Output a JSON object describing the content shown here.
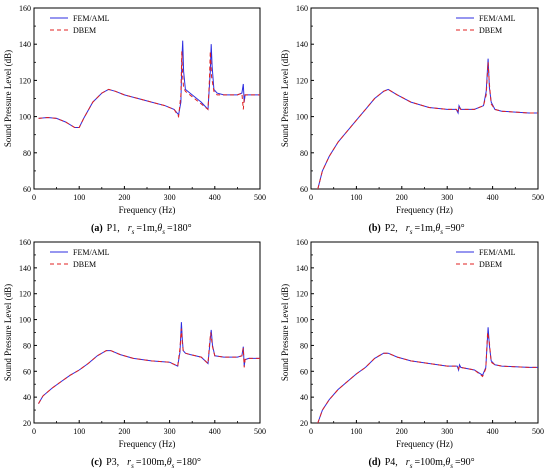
{
  "figure": {
    "legend": {
      "primary": "FEM/AML",
      "secondary": "DBEM"
    },
    "colors": {
      "primary": "#2e2ee0",
      "secondary": "#e02020"
    }
  },
  "chart_data": [
    {
      "type": "line",
      "panel": "a",
      "caption": {
        "prefix": "(a)",
        "point": "P1,",
        "rs": "1m",
        "theta": "180°"
      },
      "xlabel": "Frequency (Hz)",
      "ylabel": "Sound Pressure Level (dB)",
      "xlim": [
        0,
        500
      ],
      "ylim": [
        60,
        160
      ],
      "xticks": [
        0,
        100,
        200,
        300,
        400,
        500
      ],
      "yticks": [
        60,
        80,
        100,
        120,
        140,
        160
      ],
      "grid": false,
      "legend_position": "top-left",
      "series": [
        {
          "name": "FEM/AML",
          "style": "solid",
          "x": [
            10,
            30,
            50,
            70,
            90,
            100,
            110,
            130,
            150,
            165,
            180,
            200,
            230,
            260,
            290,
            310,
            320,
            325,
            327,
            329,
            331,
            335,
            340,
            350,
            370,
            385,
            390,
            392,
            394,
            398,
            405,
            420,
            450,
            460,
            463,
            465,
            467,
            470,
            480,
            500
          ],
          "y": [
            99,
            99.5,
            99,
            97,
            94,
            94,
            99,
            108,
            113,
            115,
            114,
            112,
            110,
            108,
            106,
            104,
            101,
            108,
            130,
            142,
            125,
            115,
            114,
            112,
            108,
            104,
            125,
            140,
            128,
            115,
            113,
            112,
            112,
            113,
            118,
            108,
            112,
            112,
            112,
            112
          ]
        },
        {
          "name": "DBEM",
          "style": "dashed",
          "x": [
            10,
            30,
            50,
            70,
            90,
            100,
            110,
            130,
            150,
            165,
            180,
            200,
            230,
            260,
            290,
            310,
            320,
            325,
            327,
            329,
            331,
            335,
            340,
            350,
            370,
            385,
            388,
            390,
            393,
            398,
            405,
            420,
            450,
            460,
            463,
            465,
            467,
            470,
            480,
            500
          ],
          "y": [
            99,
            99.5,
            99,
            97,
            94,
            94,
            99,
            108,
            113,
            115,
            114,
            112,
            110,
            108,
            106,
            104,
            100,
            112,
            136,
            122,
            116,
            114,
            113,
            111,
            107,
            104,
            120,
            136,
            122,
            114,
            112,
            112,
            112,
            113,
            104,
            110,
            112,
            112,
            112,
            112
          ]
        }
      ]
    },
    {
      "type": "line",
      "panel": "b",
      "caption": {
        "prefix": "(b)",
        "point": "P2,",
        "rs": "1m",
        "theta": "90°"
      },
      "xlabel": "Frequency (Hz)",
      "ylabel": "Sound Pressure Level (dB)",
      "xlim": [
        0,
        500
      ],
      "ylim": [
        60,
        160
      ],
      "xticks": [
        0,
        100,
        200,
        300,
        400,
        500
      ],
      "yticks": [
        60,
        80,
        100,
        120,
        140,
        160
      ],
      "grid": false,
      "legend_position": "top-right",
      "series": [
        {
          "name": "FEM/AML",
          "style": "solid",
          "x": [
            15,
            25,
            40,
            60,
            80,
            100,
            120,
            140,
            160,
            170,
            190,
            220,
            260,
            300,
            320,
            324,
            326,
            330,
            360,
            380,
            386,
            390,
            393,
            397,
            405,
            420,
            450,
            480,
            500
          ],
          "y": [
            60,
            70,
            78,
            86,
            92,
            98,
            104,
            110,
            114,
            115,
            112,
            108,
            105,
            104,
            104,
            102,
            106,
            104,
            104,
            106,
            114,
            132,
            116,
            108,
            104,
            103,
            102.5,
            102,
            102
          ]
        },
        {
          "name": "DBEM",
          "style": "dashed",
          "x": [
            15,
            25,
            40,
            60,
            80,
            100,
            120,
            140,
            160,
            170,
            190,
            220,
            260,
            300,
            320,
            324,
            326,
            330,
            360,
            380,
            386,
            390,
            393,
            397,
            405,
            420,
            450,
            480,
            500
          ],
          "y": [
            60,
            70,
            78,
            86,
            92,
            98,
            104,
            110,
            114,
            115,
            112,
            108,
            105,
            104,
            104,
            103,
            105,
            104,
            104,
            106,
            112,
            130,
            118,
            107,
            104,
            103,
            102.5,
            102,
            102
          ]
        }
      ]
    },
    {
      "type": "line",
      "panel": "c",
      "caption": {
        "prefix": "(c)",
        "point": "P3,",
        "rs": "100m",
        "theta": "180°"
      },
      "xlabel": "Frequency (Hz)",
      "ylabel": "Sound Pressure Level (dB)",
      "xlim": [
        0,
        500
      ],
      "ylim": [
        20,
        160
      ],
      "xticks": [
        0,
        100,
        200,
        300,
        400,
        500
      ],
      "yticks": [
        20,
        40,
        60,
        80,
        100,
        120,
        140,
        160
      ],
      "grid": false,
      "legend_position": "top-left",
      "series": [
        {
          "name": "FEM/AML",
          "style": "solid",
          "x": [
            10,
            20,
            40,
            60,
            80,
            100,
            120,
            140,
            160,
            170,
            190,
            220,
            260,
            300,
            318,
            323,
            326,
            328,
            330,
            335,
            345,
            370,
            385,
            390,
            392,
            395,
            400,
            420,
            450,
            460,
            463,
            465,
            467,
            475,
            500
          ],
          "y": [
            35,
            41,
            47,
            52,
            57,
            61,
            66,
            72,
            76,
            76,
            73,
            70,
            68,
            67,
            64,
            75,
            98,
            85,
            76,
            74,
            73,
            71,
            66,
            85,
            92,
            80,
            72,
            71,
            71,
            72,
            79,
            64,
            69,
            70,
            70
          ]
        },
        {
          "name": "DBEM",
          "style": "dashed",
          "x": [
            10,
            20,
            40,
            60,
            80,
            100,
            120,
            140,
            160,
            170,
            190,
            220,
            260,
            300,
            318,
            323,
            326,
            328,
            330,
            335,
            345,
            370,
            385,
            388,
            391,
            395,
            400,
            420,
            450,
            460,
            463,
            465,
            467,
            475,
            500
          ],
          "y": [
            35,
            41,
            47,
            52,
            57,
            61,
            66,
            72,
            76,
            76,
            73,
            70,
            68,
            67,
            64,
            78,
            93,
            82,
            76,
            74,
            73,
            71,
            66,
            80,
            90,
            79,
            72,
            71,
            71,
            72,
            78,
            63,
            69,
            70,
            70
          ]
        }
      ]
    },
    {
      "type": "line",
      "panel": "d",
      "caption": {
        "prefix": "(d)",
        "point": "P4,",
        "rs": "100m",
        "theta": "90°"
      },
      "xlabel": "Frequency (Hz)",
      "ylabel": "Sound Pressure Level (dB)",
      "xlim": [
        0,
        500
      ],
      "ylim": [
        20,
        160
      ],
      "xticks": [
        0,
        100,
        200,
        300,
        400,
        500
      ],
      "yticks": [
        20,
        40,
        60,
        80,
        100,
        120,
        140,
        160
      ],
      "grid": false,
      "legend_position": "top-right",
      "series": [
        {
          "name": "FEM/AML",
          "style": "solid",
          "x": [
            15,
            25,
            40,
            60,
            80,
            100,
            120,
            140,
            160,
            170,
            190,
            220,
            260,
            300,
            322,
            325,
            327,
            330,
            360,
            378,
            385,
            390,
            393,
            397,
            405,
            420,
            450,
            480,
            500
          ],
          "y": [
            20,
            30,
            38,
            46,
            52,
            58,
            63,
            70,
            74,
            74,
            71,
            68,
            66,
            64,
            64,
            61,
            65,
            63,
            61,
            57,
            63,
            94,
            80,
            68,
            65,
            64,
            63.5,
            63,
            63
          ]
        },
        {
          "name": "DBEM",
          "style": "dashed",
          "x": [
            15,
            25,
            40,
            60,
            80,
            100,
            120,
            140,
            160,
            170,
            190,
            220,
            260,
            300,
            322,
            325,
            327,
            330,
            360,
            378,
            385,
            389,
            393,
            397,
            405,
            420,
            450,
            480,
            500
          ],
          "y": [
            20,
            30,
            38,
            46,
            52,
            58,
            63,
            70,
            74,
            74,
            71,
            68,
            66,
            64,
            64,
            62,
            64,
            63,
            61,
            56,
            62,
            90,
            82,
            67,
            65,
            64,
            63.5,
            63,
            63
          ]
        }
      ]
    }
  ]
}
